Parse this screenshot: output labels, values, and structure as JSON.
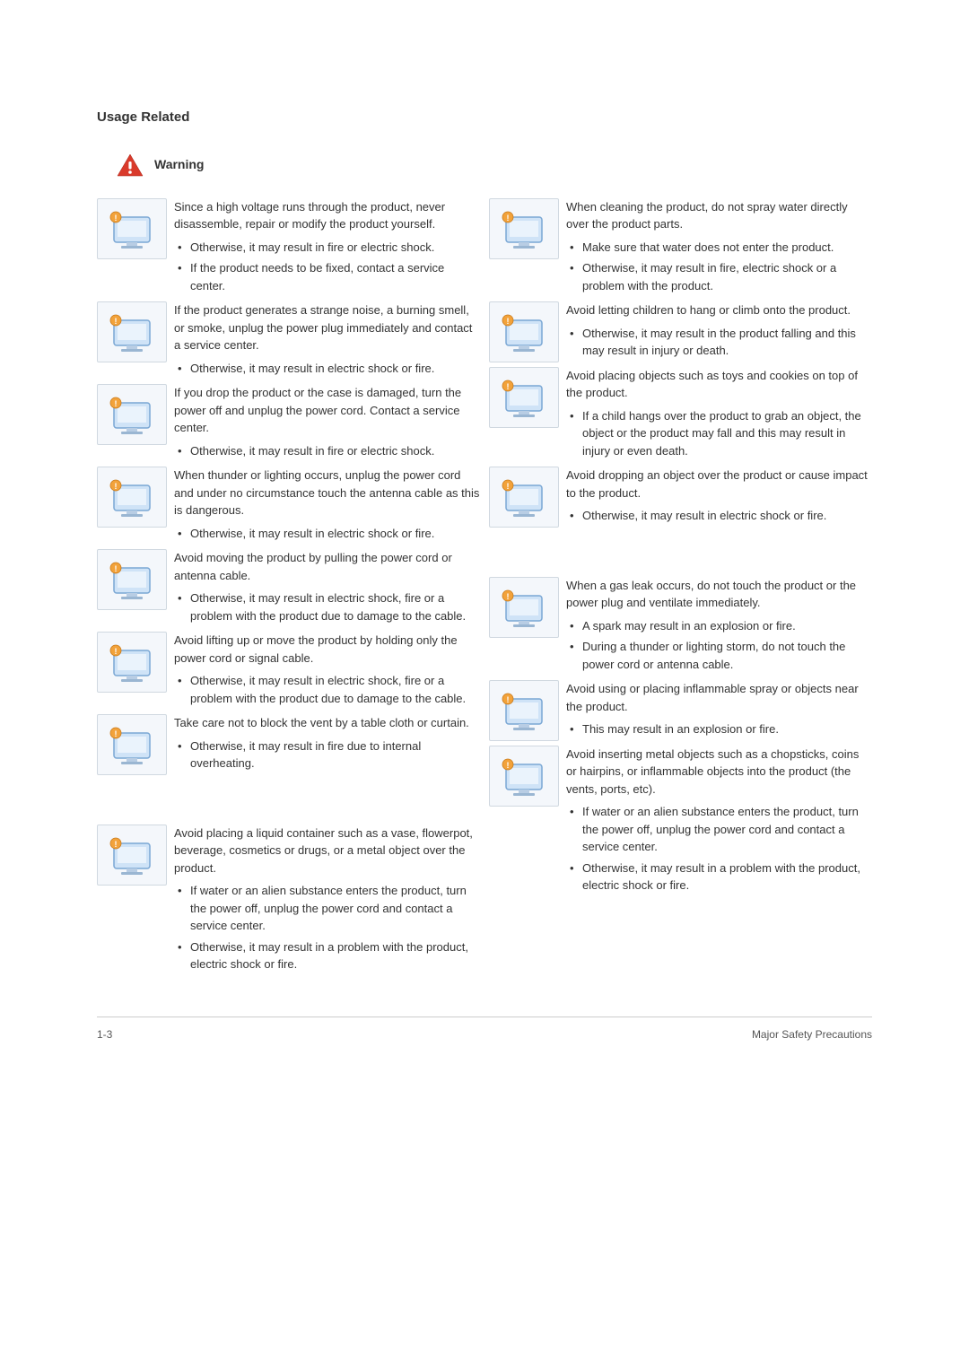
{
  "section_title": "Usage Related",
  "warning_label": "Warning",
  "warning_color": "#d93a2b",
  "warning_exclaim_color": "#ffffff",
  "footer": {
    "left": "1-3",
    "right": "Major Safety Precautions"
  },
  "left_column": [
    {
      "heading": "Since a high voltage runs through the product, never disassemble, repair or modify the product yourself.",
      "bullets": [
        "Otherwise, it may result in fire or electric shock.",
        "If the product needs to be fixed, contact a service center."
      ]
    },
    {
      "heading": "If the product generates a strange noise, a burning smell, or smoke, unplug the power plug immediately and contact a service center.",
      "bullets": [
        "Otherwise, it may result in electric shock or fire."
      ]
    },
    {
      "heading": "If you drop the product or the case is damaged, turn the power off and unplug the power cord. Contact a service center.",
      "bullets": [
        "Otherwise, it may result in fire or electric shock."
      ]
    },
    {
      "heading": "When thunder or lighting occurs, unplug the power cord and under no circumstance touch the antenna cable as this is dangerous.",
      "bullets": [
        "Otherwise, it may result in electric shock or fire."
      ]
    },
    {
      "heading": "Avoid moving the product by pulling the power cord or antenna cable.",
      "bullets": [
        "Otherwise, it may result in electric shock, fire or a problem with the product due to damage to the cable."
      ]
    },
    {
      "heading": "Avoid lifting up or move the product by holding only the power cord or signal cable.",
      "bullets": [
        "Otherwise, it may result in electric shock, fire or a problem with the product due to damage to the cable."
      ]
    },
    {
      "heading": "Take care not to block the vent by a table cloth or curtain.",
      "bullets": [
        "Otherwise, it may result in fire due to internal overheating."
      ]
    },
    {
      "heading": "Avoid placing a liquid container such as a vase, flowerpot, beverage, cosmetics or drugs, or a metal object over the product.",
      "bullets": [
        "If water or an alien substance enters the product, turn the power off, unplug the power cord and contact a  service center.",
        "Otherwise, it may result in a problem with the product, electric shock or fire."
      ],
      "gap_before": true
    }
  ],
  "right_column": [
    {
      "heading": "When cleaning the product, do not spray water directly over the product parts.",
      "bullets": [
        "Make sure that water does not enter the product.",
        "Otherwise, it may result in fire, electric shock or a problem with the product."
      ]
    },
    {
      "heading": "Avoid letting children to hang or climb onto the product.",
      "bullets": [
        "Otherwise, it may result in the product falling and this may result in injury or death."
      ]
    },
    {
      "heading": "Avoid placing objects such as toys and cookies on top of the product.",
      "bullets": [
        "If a child hangs over the product to grab an object, the object or the product may fall and this may result in injury or even death."
      ]
    },
    {
      "heading": "Avoid dropping an object over the product or cause impact to the product.",
      "bullets": [
        "Otherwise, it may result in electric shock or fire."
      ]
    },
    {
      "heading": "When a gas leak occurs, do not touch the product or the power plug and ventilate immediately.",
      "bullets": [
        "A spark may result in an explosion or fire.",
        "During a thunder or lighting storm, do not touch the power cord or antenna cable."
      ],
      "gap_before": true
    },
    {
      "heading": "Avoid using or placing inflammable spray or objects near the product.",
      "bullets": [
        "This may result in an explosion or fire."
      ]
    },
    {
      "heading": "Avoid inserting metal objects such as a chopsticks, coins or hairpins, or inflammable objects into the product (the vents, ports, etc).",
      "bullets": [
        "If water or an alien substance enters the product, turn the power off, unplug the power cord and contact a service center.",
        "Otherwise, it may result in a problem with the product, electric shock or fire."
      ]
    }
  ]
}
